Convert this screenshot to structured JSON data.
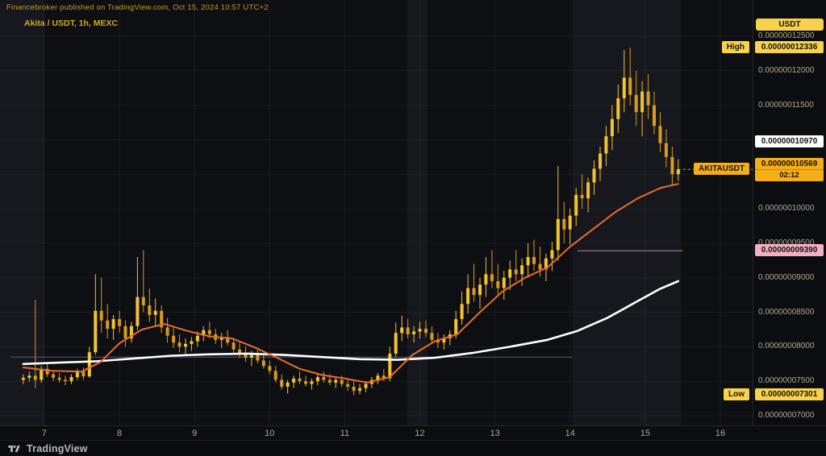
{
  "attribution": {
    "text": "Financebroker published on TradingView.com, Oct 15, 2024 10:57 UTC+2"
  },
  "header": {
    "symbol_title": "Akita / USDT, 1h, MEXC"
  },
  "axis": {
    "currency_label": "USDT"
  },
  "logo": {
    "text": "TradingView"
  },
  "colors": {
    "bg": "#0c0d10",
    "plot_bg": "#16181e",
    "shade_band": "rgba(0,0,0,0.34)",
    "grid": "rgba(255,255,255,0.055)",
    "axis_text": "#b0a98e",
    "gold": "#c29e18",
    "title_gold": "#d4ac1f",
    "candle_up": "#f3c330",
    "candle_down": "#d89a1f",
    "ma_fast": "#ee6a2a",
    "ma_slow": "#ffffff",
    "chip_yellow": "#f8d24a",
    "chip_orange": "#f6ae17",
    "chip_pink": "#f3b0c4",
    "chip_text": "#131313",
    "logo": "#b6b9c1"
  },
  "chart_data": {
    "type": "candlestick",
    "symbol": "AKITAUSDT",
    "exchange": "MEXC",
    "interval": "1h",
    "title": "Akita / USDT, 1h, MEXC",
    "price_scale": 1e-11,
    "high": 12336,
    "low": 7301,
    "last_price": 10569,
    "last_countdown": "02:12",
    "last_line_from": 15.44,
    "x_axis": {
      "min": 6.41,
      "max": 16.43,
      "ticks": [
        7,
        8,
        9,
        10,
        11,
        12,
        13,
        14,
        15,
        16
      ]
    },
    "y_axis": {
      "min": 6860,
      "max": 13025,
      "ticks": [
        12500,
        12000,
        11500,
        11000,
        10500,
        10000,
        9500,
        9000,
        8500,
        8000,
        7500,
        7000
      ]
    },
    "session_shades": [
      {
        "from": 7.0,
        "to": 11.83
      },
      {
        "from": 12.1,
        "to": 14.03
      },
      {
        "from": 15.48,
        "to": 16.43
      }
    ],
    "levels": [
      {
        "price": 7850,
        "from": 6.55,
        "to": 14.03,
        "color": "#6f6390"
      },
      {
        "price": 9390,
        "from": 14.1,
        "to": 15.5,
        "color": "#c9a0bd"
      }
    ],
    "candles": [
      [
        6.72,
        7520,
        7600,
        7460,
        7550
      ],
      [
        6.8,
        7550,
        7640,
        7500,
        7580
      ],
      [
        6.88,
        7580,
        8680,
        7400,
        7520
      ],
      [
        6.96,
        7520,
        7720,
        7480,
        7680
      ],
      [
        7.04,
        7680,
        7750,
        7560,
        7600
      ],
      [
        7.12,
        7600,
        7660,
        7500,
        7550
      ],
      [
        7.2,
        7550,
        7620,
        7480,
        7520
      ],
      [
        7.28,
        7520,
        7580,
        7440,
        7500
      ],
      [
        7.36,
        7500,
        7600,
        7460,
        7560
      ],
      [
        7.44,
        7560,
        7680,
        7520,
        7640
      ],
      [
        7.52,
        7640,
        7700,
        7520,
        7570
      ],
      [
        7.6,
        7570,
        8000,
        7550,
        7920
      ],
      [
        7.68,
        7920,
        9050,
        7880,
        8520
      ],
      [
        7.76,
        8520,
        9000,
        8200,
        8380
      ],
      [
        7.84,
        8380,
        8620,
        8120,
        8260
      ],
      [
        7.92,
        8260,
        8460,
        8100,
        8400
      ],
      [
        8.0,
        8400,
        8520,
        8200,
        8300
      ],
      [
        8.08,
        8300,
        8380,
        8000,
        8120
      ],
      [
        8.16,
        8120,
        8360,
        8060,
        8300
      ],
      [
        8.24,
        8300,
        9300,
        8240,
        8720
      ],
      [
        8.32,
        8720,
        9400,
        8500,
        8600
      ],
      [
        8.4,
        8600,
        8840,
        8360,
        8460
      ],
      [
        8.48,
        8460,
        8700,
        8300,
        8520
      ],
      [
        8.56,
        8520,
        8600,
        8200,
        8280
      ],
      [
        8.64,
        8280,
        8420,
        8060,
        8160
      ],
      [
        8.72,
        8160,
        8300,
        7980,
        8060
      ],
      [
        8.8,
        8060,
        8180,
        7920,
        8000
      ],
      [
        8.88,
        8000,
        8120,
        7880,
        8040
      ],
      [
        8.96,
        8040,
        8140,
        7940,
        8080
      ],
      [
        9.04,
        8080,
        8220,
        8000,
        8160
      ],
      [
        9.12,
        8160,
        8300,
        8080,
        8240
      ],
      [
        9.2,
        8240,
        8360,
        8120,
        8180
      ],
      [
        9.28,
        8180,
        8260,
        8040,
        8100
      ],
      [
        9.36,
        8100,
        8200,
        7980,
        8140
      ],
      [
        9.44,
        8140,
        8240,
        8020,
        8060
      ],
      [
        9.52,
        8060,
        8120,
        7900,
        7960
      ],
      [
        9.6,
        7960,
        8060,
        7840,
        7900
      ],
      [
        9.68,
        7900,
        8000,
        7780,
        7840
      ],
      [
        9.76,
        7840,
        7940,
        7720,
        7880
      ],
      [
        9.84,
        7880,
        7980,
        7760,
        7800
      ],
      [
        9.92,
        7800,
        7880,
        7680,
        7720
      ],
      [
        10.0,
        7720,
        7800,
        7600,
        7650
      ],
      [
        10.08,
        7650,
        7720,
        7480,
        7520
      ],
      [
        10.16,
        7520,
        7600,
        7380,
        7420
      ],
      [
        10.24,
        7420,
        7520,
        7320,
        7480
      ],
      [
        10.32,
        7480,
        7580,
        7400,
        7540
      ],
      [
        10.4,
        7540,
        7640,
        7460,
        7500
      ],
      [
        10.48,
        7500,
        7580,
        7420,
        7460
      ],
      [
        10.56,
        7460,
        7540,
        7380,
        7500
      ],
      [
        10.64,
        7500,
        7600,
        7440,
        7560
      ],
      [
        10.72,
        7560,
        7640,
        7480,
        7520
      ],
      [
        10.8,
        7520,
        7600,
        7440,
        7480
      ],
      [
        10.88,
        7480,
        7560,
        7400,
        7520
      ],
      [
        10.96,
        7520,
        7580,
        7420,
        7460
      ],
      [
        11.04,
        7460,
        7540,
        7360,
        7420
      ],
      [
        11.12,
        7420,
        7500,
        7301,
        7360
      ],
      [
        11.2,
        7360,
        7460,
        7310,
        7400
      ],
      [
        11.28,
        7400,
        7500,
        7340,
        7460
      ],
      [
        11.36,
        7460,
        7560,
        7400,
        7520
      ],
      [
        11.44,
        7520,
        7620,
        7460,
        7580
      ],
      [
        11.52,
        7580,
        7680,
        7500,
        7540
      ],
      [
        11.6,
        7540,
        8000,
        7500,
        7900
      ],
      [
        11.68,
        7900,
        8350,
        7850,
        8200
      ],
      [
        11.76,
        8200,
        8450,
        8080,
        8280
      ],
      [
        11.84,
        8280,
        8400,
        8120,
        8180
      ],
      [
        11.92,
        8180,
        8300,
        8060,
        8220
      ],
      [
        12.0,
        8220,
        8360,
        8120,
        8260
      ],
      [
        12.08,
        8260,
        8380,
        8140,
        8200
      ],
      [
        12.16,
        8200,
        8300,
        8040,
        8100
      ],
      [
        12.24,
        8100,
        8200,
        7980,
        8060
      ],
      [
        12.32,
        8060,
        8180,
        7960,
        8120
      ],
      [
        12.4,
        8120,
        8240,
        8020,
        8180
      ],
      [
        12.48,
        8180,
        8520,
        8120,
        8400
      ],
      [
        12.56,
        8400,
        8800,
        8320,
        8620
      ],
      [
        12.64,
        8620,
        9050,
        8480,
        8850
      ],
      [
        12.72,
        8850,
        9200,
        8650,
        8750
      ],
      [
        12.8,
        8750,
        9000,
        8550,
        8900
      ],
      [
        12.88,
        8900,
        9300,
        8720,
        9050
      ],
      [
        12.96,
        9050,
        9400,
        8850,
        8950
      ],
      [
        13.04,
        8950,
        9200,
        8750,
        8850
      ],
      [
        13.12,
        8850,
        9100,
        8680,
        9000
      ],
      [
        13.2,
        9000,
        9250,
        8820,
        9120
      ],
      [
        13.28,
        9120,
        9400,
        8950,
        9050
      ],
      [
        13.36,
        9050,
        9280,
        8880,
        9180
      ],
      [
        13.44,
        9180,
        9500,
        9000,
        9300
      ],
      [
        13.52,
        9300,
        9550,
        9100,
        9200
      ],
      [
        13.6,
        9200,
        9450,
        9020,
        9120
      ],
      [
        13.68,
        9120,
        9350,
        8950,
        9280
      ],
      [
        13.76,
        9280,
        9520,
        9100,
        9400
      ],
      [
        13.84,
        9400,
        10620,
        9250,
        9850
      ],
      [
        13.92,
        9850,
        10100,
        9500,
        9700
      ],
      [
        14.0,
        9700,
        10000,
        9480,
        9900
      ],
      [
        14.08,
        9900,
        10300,
        9750,
        10200
      ],
      [
        14.16,
        10200,
        10500,
        10000,
        10150
      ],
      [
        14.24,
        10150,
        10450,
        9950,
        10380
      ],
      [
        14.32,
        10380,
        10700,
        10200,
        10580
      ],
      [
        14.4,
        10580,
        10900,
        10400,
        10800
      ],
      [
        14.48,
        10800,
        11200,
        10620,
        11050
      ],
      [
        14.56,
        11050,
        11500,
        10850,
        11300
      ],
      [
        14.64,
        11300,
        11800,
        11100,
        11600
      ],
      [
        14.72,
        11600,
        12300,
        11400,
        11900
      ],
      [
        14.8,
        11900,
        12336,
        11500,
        11650
      ],
      [
        14.88,
        11650,
        12000,
        11200,
        11400
      ],
      [
        14.96,
        11400,
        11850,
        11050,
        11700
      ],
      [
        15.04,
        11700,
        11950,
        11300,
        11500
      ],
      [
        15.12,
        11500,
        11700,
        11080,
        11200
      ],
      [
        15.2,
        11200,
        11400,
        10820,
        10950
      ],
      [
        15.28,
        10950,
        11150,
        10600,
        10750
      ],
      [
        15.36,
        10750,
        10900,
        10350,
        10500
      ],
      [
        15.44,
        10500,
        10720,
        10400,
        10569
      ]
    ],
    "ma_fast": {
      "name": "MA fast (orange)",
      "points": [
        [
          6.72,
          7700
        ],
        [
          7.1,
          7650
        ],
        [
          7.5,
          7640
        ],
        [
          7.75,
          7780
        ],
        [
          8.0,
          8050
        ],
        [
          8.3,
          8250
        ],
        [
          8.6,
          8330
        ],
        [
          8.9,
          8230
        ],
        [
          9.2,
          8150
        ],
        [
          9.5,
          8120
        ],
        [
          9.8,
          7990
        ],
        [
          10.1,
          7840
        ],
        [
          10.4,
          7680
        ],
        [
          10.7,
          7590
        ],
        [
          11.0,
          7540
        ],
        [
          11.3,
          7480
        ],
        [
          11.6,
          7560
        ],
        [
          11.9,
          7880
        ],
        [
          12.2,
          8080
        ],
        [
          12.5,
          8180
        ],
        [
          12.8,
          8500
        ],
        [
          13.1,
          8800
        ],
        [
          13.4,
          9000
        ],
        [
          13.7,
          9150
        ],
        [
          14.0,
          9450
        ],
        [
          14.3,
          9700
        ],
        [
          14.6,
          9950
        ],
        [
          14.9,
          10150
        ],
        [
          15.2,
          10300
        ],
        [
          15.44,
          10360
        ]
      ]
    },
    "ma_slow": {
      "name": "MA slow (white)",
      "points": [
        [
          6.72,
          7750
        ],
        [
          7.2,
          7770
        ],
        [
          7.7,
          7790
        ],
        [
          8.2,
          7830
        ],
        [
          8.7,
          7870
        ],
        [
          9.2,
          7890
        ],
        [
          9.7,
          7900
        ],
        [
          10.2,
          7880
        ],
        [
          10.7,
          7850
        ],
        [
          11.2,
          7820
        ],
        [
          11.7,
          7810
        ],
        [
          12.2,
          7840
        ],
        [
          12.7,
          7910
        ],
        [
          13.2,
          8000
        ],
        [
          13.7,
          8100
        ],
        [
          14.1,
          8230
        ],
        [
          14.5,
          8420
        ],
        [
          14.9,
          8660
        ],
        [
          15.2,
          8840
        ],
        [
          15.44,
          8950
        ]
      ]
    }
  },
  "badges": [
    {
      "id": "high",
      "style": "yellow",
      "price": 12336,
      "value": "0.00000012336",
      "side_label": "High"
    },
    {
      "id": "level_white",
      "style": "white",
      "price": 10970,
      "value": "0.00000010970"
    },
    {
      "id": "last_price",
      "style": "orange",
      "price": 10569,
      "value": "0.00000010569",
      "countdown": "02:12",
      "side_label": "AKITAUSDT"
    },
    {
      "id": "level_pink",
      "style": "pink",
      "price": 9390,
      "value": "0.00000009390"
    },
    {
      "id": "low",
      "style": "yellow",
      "price": 7301,
      "value": "0.00000007301",
      "side_label": "Low"
    }
  ]
}
